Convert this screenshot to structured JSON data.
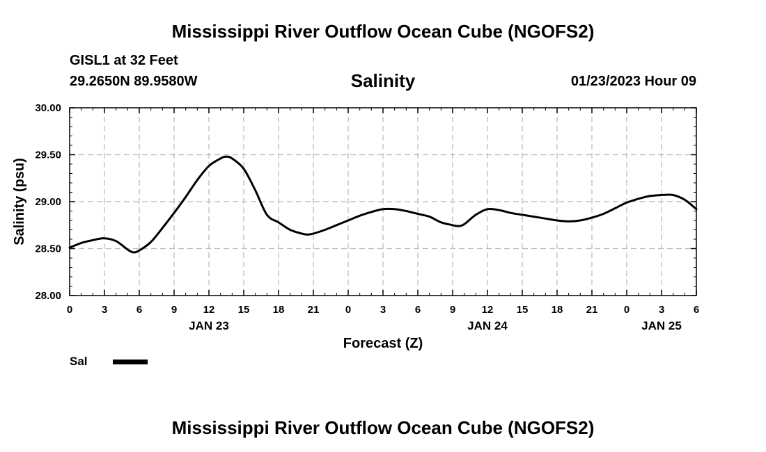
{
  "header": {
    "title": "Mississippi River Outflow Ocean Cube (NGOFS2)",
    "station": "GISL1 at 32 Feet",
    "coordinates": "29.2650N  89.9580W",
    "date_hour": "01/23/2023 Hour 09"
  },
  "footer": {
    "title": "Mississippi River Outflow Ocean Cube (NGOFS2)"
  },
  "legend": {
    "series_label": "Sal"
  },
  "chart_data": {
    "type": "line",
    "title": "Salinity",
    "xlabel": "Forecast (Z)",
    "ylabel": "Salinity (psu)",
    "xlim": [
      0,
      54
    ],
    "ylim": [
      28.0,
      30.0
    ],
    "grid": true,
    "legend_position": "bottom-left",
    "x_ticks": [
      0,
      3,
      6,
      9,
      12,
      15,
      18,
      21,
      24,
      27,
      30,
      33,
      36,
      39,
      42,
      45,
      48,
      51,
      54
    ],
    "x_tick_labels": [
      "0",
      "3",
      "6",
      "9",
      "12",
      "15",
      "18",
      "21",
      "0",
      "3",
      "6",
      "9",
      "12",
      "15",
      "18",
      "21",
      "0",
      "3",
      "6"
    ],
    "date_labels": [
      {
        "x": 12,
        "label": "JAN 23"
      },
      {
        "x": 36,
        "label": "JAN 24"
      },
      {
        "x": 51,
        "label": "JAN 25"
      }
    ],
    "y_ticks": [
      28.0,
      28.5,
      29.0,
      29.5,
      30.0
    ],
    "y_tick_labels": [
      "28.00",
      "28.50",
      "29.00",
      "29.50",
      "30.00"
    ],
    "series": [
      {
        "name": "Sal",
        "color": "#000000",
        "x": [
          0,
          1,
          2,
          3,
          4,
          5,
          5.5,
          6,
          7,
          8,
          9,
          10,
          11,
          12,
          13,
          13.5,
          14,
          15,
          16,
          17,
          18,
          19,
          20,
          20.5,
          21,
          22,
          23,
          24,
          25,
          26,
          27,
          28,
          29,
          30,
          31,
          32,
          33,
          33.5,
          34,
          35,
          36,
          37,
          38,
          39,
          40,
          41,
          42,
          43,
          44,
          45,
          46,
          47,
          48,
          49,
          50,
          51,
          52,
          53,
          54
        ],
        "y": [
          28.51,
          28.56,
          28.59,
          28.61,
          28.58,
          28.49,
          28.46,
          28.48,
          28.57,
          28.72,
          28.88,
          29.05,
          29.23,
          29.38,
          29.46,
          29.48,
          29.46,
          29.35,
          29.12,
          28.86,
          28.78,
          28.7,
          28.66,
          28.65,
          28.66,
          28.7,
          28.75,
          28.8,
          28.85,
          28.89,
          28.92,
          28.92,
          28.9,
          28.87,
          28.84,
          28.78,
          28.75,
          28.74,
          28.76,
          28.86,
          28.92,
          28.91,
          28.88,
          28.86,
          28.84,
          28.82,
          28.8,
          28.79,
          28.8,
          28.83,
          28.87,
          28.93,
          28.99,
          29.03,
          29.06,
          29.07,
          29.07,
          29.02,
          28.92
        ]
      }
    ]
  }
}
